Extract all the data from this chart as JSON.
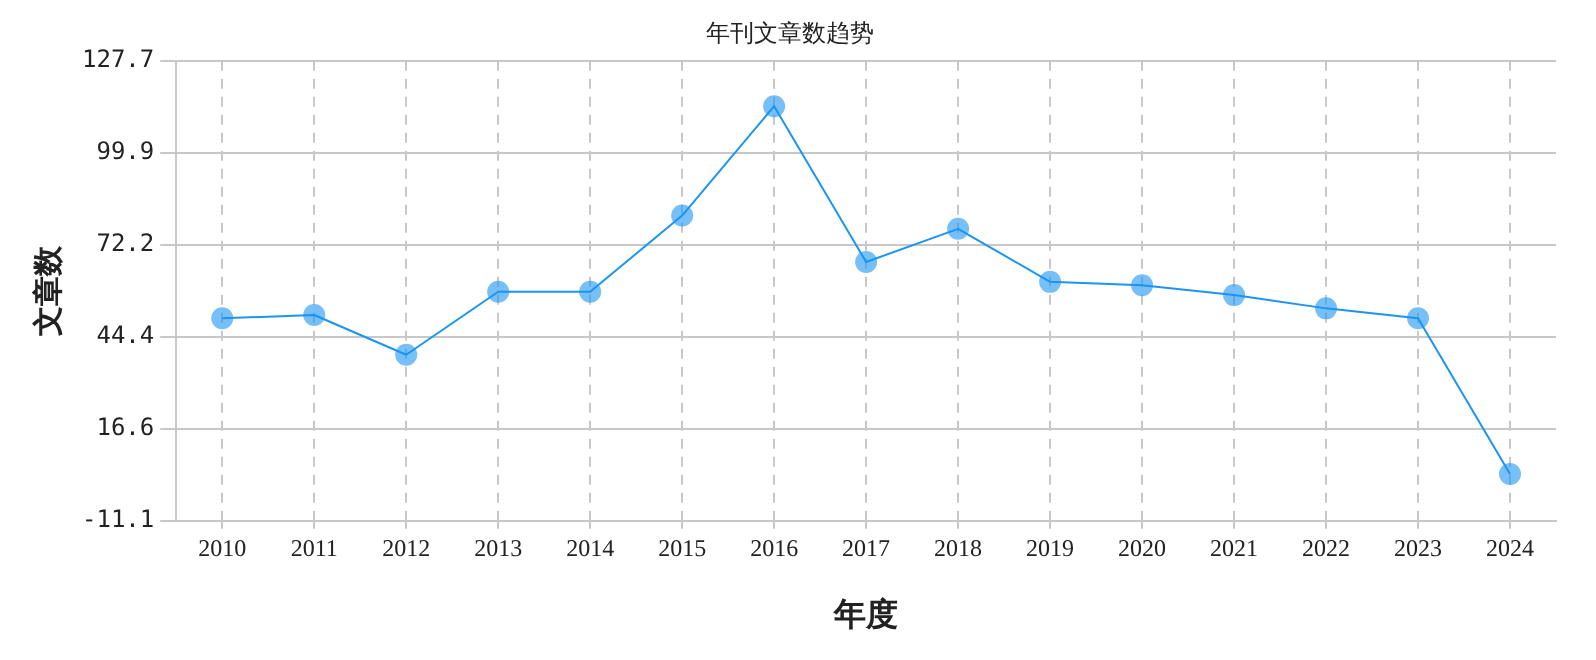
{
  "chart_data": {
    "type": "line",
    "title": "年刊文章数趋势",
    "xlabel": "年度",
    "ylabel": "文章数",
    "categories": [
      "2010",
      "2011",
      "2012",
      "2013",
      "2014",
      "2015",
      "2016",
      "2017",
      "2018",
      "2019",
      "2020",
      "2021",
      "2022",
      "2023",
      "2024"
    ],
    "series": [
      {
        "color": "#1b95f2",
        "values": [
          50,
          51,
          39,
          58,
          58,
          81,
          114,
          67,
          77,
          61,
          60,
          57,
          53,
          50,
          3
        ]
      }
    ],
    "ylim": [
      -11.1,
      127.7
    ],
    "yticks": [
      -11.1,
      16.6,
      44.4,
      72.2,
      99.9,
      127.7
    ],
    "grid": true,
    "legend": false,
    "marker": "circle",
    "line_style": "solid"
  }
}
